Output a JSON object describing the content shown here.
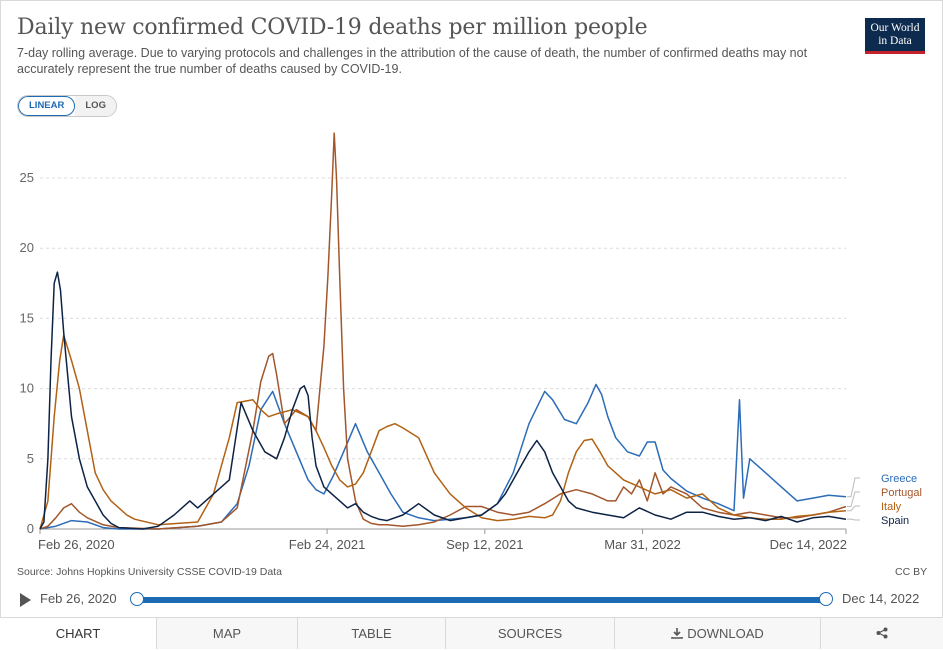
{
  "header": {
    "title": "Daily new confirmed COVID-19 deaths per million people",
    "subtitle": "7-day rolling average. Due to varying protocols and challenges in the attribution of the cause of death, the number of confirmed deaths may not accurately represent the true number of deaths caused by COVID-19.",
    "logo_line1": "Our World",
    "logo_line2": "in Data"
  },
  "scale_toggle": {
    "linear": "LINEAR",
    "log": "LOG",
    "selected": "LINEAR"
  },
  "chart_data": {
    "type": "line",
    "title": "Daily new confirmed COVID-19 deaths per million people",
    "xlabel": "",
    "ylabel": "",
    "x_range": [
      "2020-02-26",
      "2022-12-14"
    ],
    "ylim": [
      0,
      28.5
    ],
    "y_ticks": [
      "0",
      "5",
      "10",
      "15",
      "20",
      "25"
    ],
    "x_tick_labels": [
      "Feb 26, 2020",
      "Feb 24, 2021",
      "Sep 12, 2021",
      "Mar 31, 2022",
      "Dec 14, 2022"
    ],
    "x_tick_days": [
      0,
      364,
      564,
      764,
      1022
    ],
    "grid": true,
    "legend": "right-end labels",
    "series": [
      {
        "name": "Greece",
        "color": "#2c6cb8",
        "x": [
          0,
          20,
          40,
          60,
          80,
          100,
          150,
          200,
          230,
          250,
          265,
          280,
          295,
          310,
          325,
          340,
          350,
          360,
          372,
          385,
          400,
          415,
          430,
          445,
          460,
          480,
          500,
          520,
          540,
          560,
          580,
          600,
          620,
          640,
          650,
          665,
          680,
          695,
          705,
          712,
          720,
          730,
          745,
          760,
          770,
          780,
          790,
          800,
          820,
          840,
          860,
          880,
          887,
          892,
          900,
          920,
          940,
          960,
          980,
          1000,
          1022
        ],
        "y": [
          0,
          0.2,
          0.6,
          0.5,
          0.1,
          0,
          0,
          0.2,
          0.5,
          1.8,
          4.5,
          8.5,
          9.8,
          7.5,
          5.5,
          3.5,
          2.8,
          2.5,
          3.8,
          5.5,
          7.5,
          5.5,
          4,
          2.5,
          1.2,
          0.8,
          0.6,
          0.7,
          0.8,
          1,
          1.8,
          4,
          7.5,
          9.8,
          9.2,
          7.8,
          7.5,
          9,
          10.3,
          9.6,
          8,
          6.5,
          5.5,
          5.2,
          6.2,
          6.2,
          4.2,
          3.6,
          2.7,
          2.2,
          1.8,
          1.3,
          9.2,
          2.2,
          5,
          4,
          3,
          2,
          2.2,
          2.4,
          2.3
        ]
      },
      {
        "name": "Portugal",
        "color": "#a2562c",
        "x": [
          0,
          10,
          20,
          30,
          40,
          50,
          60,
          80,
          100,
          150,
          200,
          230,
          250,
          270,
          280,
          290,
          295,
          300,
          310,
          325,
          340,
          350,
          360,
          365,
          370,
          373,
          376,
          380,
          385,
          390,
          400,
          410,
          420,
          430,
          440,
          460,
          480,
          500,
          520,
          540,
          560,
          580,
          600,
          620,
          640,
          660,
          680,
          700,
          720,
          730,
          740,
          750,
          760,
          770,
          780,
          790,
          800,
          820,
          840,
          860,
          880,
          900,
          920,
          940,
          960,
          980,
          1000,
          1022
        ],
        "y": [
          0,
          0.2,
          0.8,
          1.5,
          1.8,
          1.2,
          0.8,
          0.3,
          0.1,
          0,
          0.2,
          0.5,
          1.5,
          7,
          10.5,
          12.3,
          12.5,
          11,
          7.5,
          8.5,
          8,
          7,
          13,
          18,
          24,
          28.2,
          25,
          18,
          10,
          5,
          2,
          0.7,
          0.4,
          0.3,
          0.3,
          0.2,
          0.3,
          0.5,
          1,
          1.6,
          1.6,
          1.2,
          1,
          1.2,
          1.8,
          2.5,
          2.8,
          2.5,
          2,
          2,
          3,
          2.5,
          3.5,
          2,
          4,
          2.5,
          3,
          2.5,
          1.5,
          1.2,
          1,
          1.2,
          1,
          0.8,
          0.8,
          1,
          1.2,
          1.6
        ]
      },
      {
        "name": "Italy",
        "color": "#b16214",
        "x": [
          0,
          10,
          18,
          25,
          30,
          40,
          50,
          60,
          70,
          80,
          90,
          100,
          110,
          120,
          150,
          200,
          220,
          240,
          250,
          270,
          280,
          290,
          300,
          320,
          340,
          350,
          360,
          370,
          380,
          390,
          400,
          410,
          420,
          430,
          440,
          450,
          460,
          480,
          500,
          520,
          540,
          560,
          580,
          600,
          620,
          640,
          650,
          660,
          670,
          680,
          690,
          700,
          710,
          720,
          740,
          760,
          780,
          800,
          820,
          840,
          860,
          880,
          900,
          920,
          940,
          960,
          980,
          1000,
          1022
        ],
        "y": [
          0,
          2,
          8,
          12,
          13.8,
          12,
          10,
          7,
          4,
          2.8,
          2,
          1.5,
          1,
          0.7,
          0.3,
          0.5,
          2.5,
          6.5,
          9,
          9.2,
          8.5,
          8,
          8.2,
          8.5,
          8,
          7,
          5.8,
          4.5,
          3.5,
          3,
          3.2,
          4,
          5.5,
          7,
          7.3,
          7.5,
          7.2,
          6.5,
          4,
          2.5,
          1.5,
          0.8,
          0.6,
          0.7,
          0.9,
          0.8,
          1,
          2,
          4,
          5.5,
          6.3,
          6.4,
          5.5,
          4.5,
          3.5,
          3,
          2.5,
          2.8,
          2.2,
          2.5,
          1.5,
          1,
          0.8,
          0.7,
          0.7,
          0.9,
          1,
          1.2,
          1.3
        ]
      },
      {
        "name": "Spain",
        "color": "#0d2345",
        "x": [
          0,
          5,
          10,
          14,
          18,
          22,
          26,
          30,
          40,
          50,
          60,
          70,
          80,
          90,
          100,
          130,
          150,
          170,
          190,
          200,
          220,
          230,
          240,
          255,
          270,
          285,
          300,
          310,
          320,
          330,
          335,
          340,
          345,
          350,
          360,
          370,
          380,
          390,
          400,
          410,
          420,
          430,
          440,
          460,
          480,
          500,
          520,
          540,
          560,
          580,
          590,
          600,
          610,
          620,
          630,
          640,
          650,
          660,
          670,
          680,
          700,
          720,
          740,
          760,
          780,
          800,
          820,
          840,
          860,
          880,
          900,
          920,
          940,
          960,
          980,
          1000,
          1022
        ],
        "y": [
          0,
          0.5,
          5,
          12,
          17.5,
          18.3,
          17,
          14,
          8,
          5,
          3,
          2,
          1,
          0.4,
          0.1,
          0,
          0.2,
          1,
          2,
          1.5,
          2.5,
          3,
          3.5,
          9,
          7,
          5.5,
          5,
          6.5,
          8.5,
          10,
          10.2,
          9.5,
          6.5,
          4.5,
          3,
          2.5,
          2,
          1.5,
          1.8,
          1.2,
          0.9,
          0.7,
          0.6,
          1,
          1.8,
          1,
          0.6,
          0.8,
          1,
          1.8,
          2.5,
          3.5,
          4.5,
          5.5,
          6.3,
          5.5,
          4,
          3,
          2,
          1.5,
          1.2,
          1,
          0.8,
          1.5,
          1,
          0.7,
          1.2,
          1.2,
          0.9,
          0.7,
          0.8,
          0.6,
          0.9,
          0.5,
          0.8,
          0.9,
          0.7
        ]
      }
    ]
  },
  "footer": {
    "source": "Source: Johns Hopkins University CSSE COVID-19 Data",
    "license": "CC BY"
  },
  "timeline": {
    "start_label": "Feb 26, 2020",
    "end_label": "Dec 14, 2022"
  },
  "tabs": [
    {
      "label": "CHART",
      "active": true
    },
    {
      "label": "MAP"
    },
    {
      "label": "TABLE"
    },
    {
      "label": "SOURCES"
    },
    {
      "label": "DOWNLOAD"
    },
    {
      "label": ""
    }
  ]
}
